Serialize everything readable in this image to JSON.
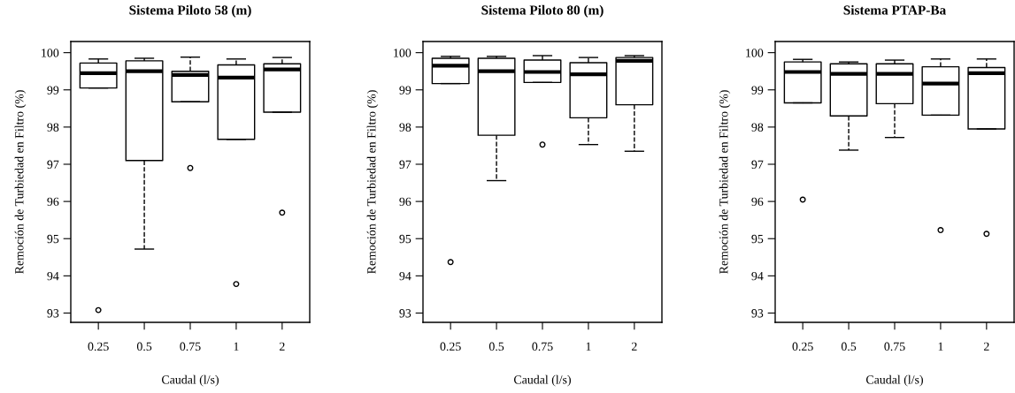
{
  "chart_data": [
    {
      "type": "box",
      "title": "Sistema Piloto 58 (m)",
      "xlabel": "Caudal (l/s)",
      "ylabel": "Remoción de Turbiedad en Filtro (%)",
      "categories": [
        "0.25",
        "0.5",
        "0.75",
        "1",
        "2"
      ],
      "ylim": [
        92.75,
        100.3
      ],
      "yticks": [
        93,
        94,
        95,
        96,
        97,
        98,
        99,
        100
      ],
      "line_style": "dashed",
      "boxes": [
        {
          "low": 99.05,
          "q1": 99.05,
          "median": 99.45,
          "q3": 99.72,
          "high": 99.83,
          "outliers": [
            93.08
          ]
        },
        {
          "low": 94.72,
          "q1": 97.1,
          "median": 99.5,
          "q3": 99.78,
          "high": 99.85
        },
        {
          "low": 98.68,
          "q1": 98.68,
          "median": 99.4,
          "q3": 99.5,
          "high": 99.88,
          "outliers": [
            96.9
          ]
        },
        {
          "low": 97.67,
          "q1": 97.67,
          "median": 99.33,
          "q3": 99.67,
          "high": 99.83,
          "outliers": [
            93.78
          ]
        },
        {
          "low": 98.4,
          "q1": 98.4,
          "median": 99.55,
          "q3": 99.7,
          "high": 99.87,
          "outliers": [
            95.7
          ]
        }
      ]
    },
    {
      "type": "box",
      "title": "Sistema Piloto 80 (m)",
      "xlabel": "Caudal (l/s)",
      "ylabel": "Remoción de Turbiedad en Filtro (%)",
      "categories": [
        "0.25",
        "0.5",
        "0.75",
        "1",
        "2"
      ],
      "ylim": [
        92.75,
        100.3
      ],
      "yticks": [
        93,
        94,
        95,
        96,
        97,
        98,
        99,
        100
      ],
      "line_style": "dashed",
      "boxes": [
        {
          "low": 99.17,
          "q1": 99.17,
          "median": 99.65,
          "q3": 99.85,
          "high": 99.9,
          "outliers": [
            94.37
          ]
        },
        {
          "low": 96.56,
          "q1": 97.78,
          "median": 99.5,
          "q3": 99.85,
          "high": 99.9
        },
        {
          "low": 99.2,
          "q1": 99.2,
          "median": 99.48,
          "q3": 99.8,
          "high": 99.92,
          "outliers": [
            97.53
          ]
        },
        {
          "low": 97.53,
          "q1": 98.25,
          "median": 99.42,
          "q3": 99.73,
          "high": 99.87
        },
        {
          "low": 97.35,
          "q1": 98.6,
          "median": 99.78,
          "q3": 99.87,
          "high": 99.92
        }
      ]
    },
    {
      "type": "box",
      "title": "Sistema PTAP-Ba",
      "xlabel": "Caudal (l/s)",
      "ylabel": "Remoción de Turbiedad en Filtro (%)",
      "categories": [
        "0.25",
        "0.5",
        "0.75",
        "1",
        "2"
      ],
      "ylim": [
        92.75,
        100.3
      ],
      "yticks": [
        93,
        94,
        95,
        96,
        97,
        98,
        99,
        100
      ],
      "line_style": "dashed",
      "boxes": [
        {
          "low": 98.65,
          "q1": 98.65,
          "median": 99.48,
          "q3": 99.75,
          "high": 99.82,
          "outliers": [
            96.05
          ]
        },
        {
          "low": 97.38,
          "q1": 98.3,
          "median": 99.43,
          "q3": 99.7,
          "high": 99.75
        },
        {
          "low": 97.72,
          "q1": 98.63,
          "median": 99.43,
          "q3": 99.7,
          "high": 99.8
        },
        {
          "low": 98.32,
          "q1": 98.32,
          "median": 99.17,
          "q3": 99.62,
          "high": 99.83,
          "outliers": [
            95.23
          ]
        },
        {
          "low": 97.95,
          "q1": 97.95,
          "median": 99.45,
          "q3": 99.6,
          "high": 99.83,
          "outliers": [
            95.13
          ]
        }
      ]
    }
  ]
}
